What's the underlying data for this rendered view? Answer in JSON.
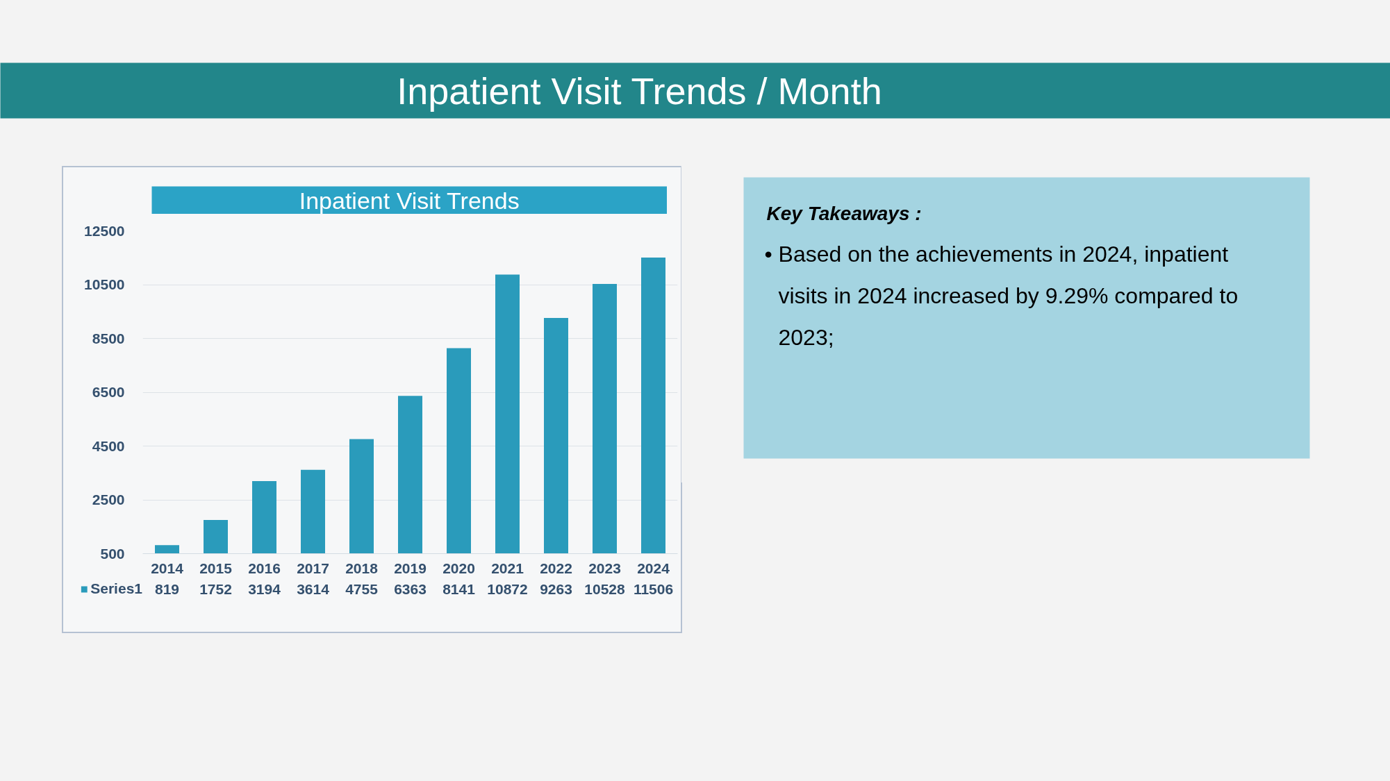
{
  "chart_data": [
    {
      "type": "bar",
      "title": "Inpatient Visit Trends / Month",
      "subtitle": "Inpatient Visit Trends",
      "categories": [
        "2014",
        "2015",
        "2016",
        "2017",
        "2018",
        "2019",
        "2020",
        "2021",
        "2022",
        "2023",
        "2024"
      ],
      "series": [
        {
          "name": "Series1",
          "color": "#2a9bbb",
          "values": [
            819,
            1752,
            3194,
            3614,
            4755,
            6363,
            8141,
            10872,
            9263,
            10528,
            11506
          ]
        }
      ],
      "ylim": [
        500,
        12500
      ],
      "yticks": [
        500,
        2500,
        4500,
        6500,
        8500,
        10500,
        12500
      ],
      "grid": "y",
      "legend": "bottom left",
      "data_labels": true
    },
    {
      "type": "other",
      "title": "Key Takeaways :",
      "annotations": [
        "• Based on the achievements in 2024, inpatient visits in 2024 increased by 9.29% compared to 2023;"
      ]
    }
  ]
}
